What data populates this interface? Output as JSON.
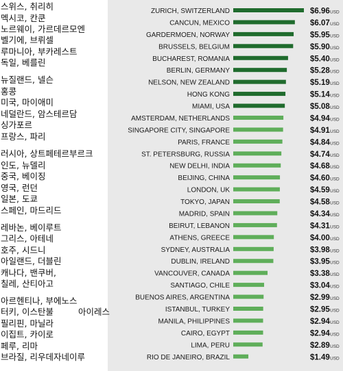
{
  "korean_labels": [
    "스위스, 취리히",
    "멕시코, 칸쿤",
    "노르웨이, 가르데르모엔",
    "벨기에, 브뤼셀",
    "루마니아, 부카레스트",
    "독일, 베를린",
    "뉴질랜드, 넬슨",
    "홍콩",
    "미국, 마이애미",
    "네덜란드, 암스테르담",
    "싱가포르",
    "프랑스, 파리",
    "러시아, 상트페테르부르크",
    "인도, 뉴델리",
    "중국, 베이징",
    "영국, 런던",
    "일본, 도쿄",
    "스페인, 마드리드",
    "레바논, 베이루트",
    "그리스, 아테네",
    "호주, 시드니",
    "아일랜드, 더블린",
    "캐나다, 밴쿠버,",
    "칠레, 산티아고",
    "아르헨티나, 부에노스",
    "터키, 이스탄불",
    "필리핀, 마닐라",
    "이집트, 카이로",
    "페루, 리마",
    "브라질, 리우데자네이루"
  ],
  "korean_extra": "아이레스",
  "colors": {
    "dark_green": "#1f6b2d",
    "light_green": "#5fae5a",
    "panel_bg": "#e9e9e9"
  },
  "chart_data": {
    "type": "bar",
    "orientation": "horizontal",
    "unit": "USD",
    "categories": [
      "ZURICH, SWITZERLAND",
      "CANCUN, MEXICO",
      "GARDERMOEN, NORWAY",
      "BRUSSELS, BELGIUM",
      "BUCHAREST, ROMANIA",
      "BERLIN, GERMANY",
      "NELSON, NEW ZEALAND",
      "HONG KONG",
      "MIAMI, USA",
      "AMSTERDAM, NETHERLANDS",
      "SINGAPORE CITY, SINGAPORE",
      "PARIS, FRANCE",
      "ST. PETERSBURG, RUSSIA",
      "NEW DELHI, INDIA",
      "BEIJING, CHINA",
      "LONDON, UK",
      "TOKYO, JAPAN",
      "MADRID, SPAIN",
      "BEIRUT, LEBANON",
      "ATHENS, GREECE",
      "SYDNEY, AUSTRALIA",
      "DUBLIN, IRELAND",
      "VANCOUVER, CANADA",
      "SANTIAGO, CHILE",
      "BUENOS AIRES, ARGENTINA",
      "ISTANBUL, TURKEY",
      "MANILA, PHILIPPINES",
      "CAIRO, EGYPT",
      "LIMA, PERU",
      "RIO DE JANEIRO, BRAZIL"
    ],
    "values": [
      6.96,
      6.07,
      5.95,
      5.9,
      5.4,
      5.28,
      5.19,
      5.14,
      5.08,
      4.94,
      4.91,
      4.84,
      4.74,
      4.68,
      4.6,
      4.59,
      4.58,
      4.34,
      4.31,
      4.0,
      3.98,
      3.95,
      3.38,
      3.04,
      2.99,
      2.95,
      2.94,
      2.94,
      2.89,
      1.49
    ],
    "value_labels": [
      "$6.96",
      "$6.07",
      "$5.95",
      "$5.90",
      "$5.40",
      "$5.28",
      "$5.19",
      "$5.14",
      "$5.08",
      "$4.94",
      "$4.91",
      "$4.84",
      "$4.74",
      "$4.68",
      "$4.60",
      "$4.59",
      "$4.58",
      "$4.34",
      "$4.31",
      "$4.00",
      "$3.98",
      "$3.95",
      "$3.38",
      "$3.04",
      "$2.99",
      "$2.95",
      "$2.94",
      "$2.94",
      "$2.89",
      "$1.49"
    ],
    "unit_label": "USD",
    "dark_count": 9,
    "xlim": [
      0,
      6.96
    ]
  }
}
